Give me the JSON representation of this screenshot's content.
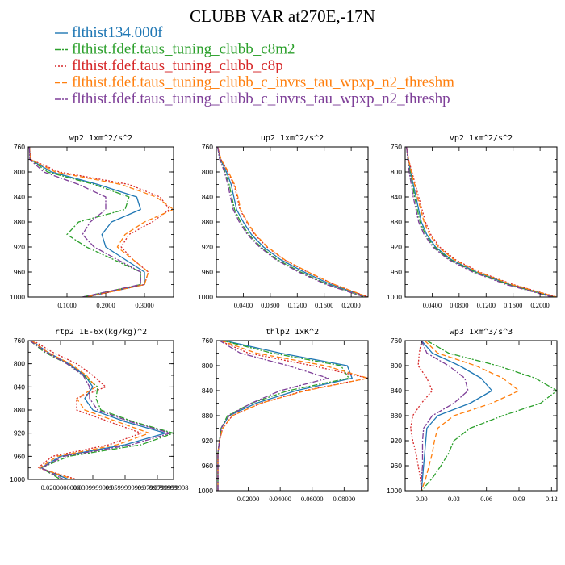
{
  "figure": {
    "title": "CLUBB VAR at270E,-17N"
  },
  "legend": [
    {
      "name": "flthist134.000f",
      "color": "#1f77b4",
      "dash": "solid"
    },
    {
      "name": "flthist.fdef.taus_tuning_clubb_c8m2",
      "color": "#2ca02c",
      "dash": "dashdot"
    },
    {
      "name": "flthist.fdef.taus_tuning_clubb_c8p",
      "color": "#d62728",
      "dash": "dot"
    },
    {
      "name": "flthist.fdef.taus_tuning_clubb_c_invrs_tau_wpxp_n2_threshm",
      "color": "#ff7f0e",
      "dash": "dash"
    },
    {
      "name": "flthist.fdef.taus_tuning_clubb_c_invrs_tau_wpxp_n2_threshp",
      "color": "#7e3f98",
      "dash": "dashdot"
    }
  ],
  "chart_data": [
    {
      "type": "line",
      "title": "wp2  1xm^2/s^2",
      "ylim": [
        760,
        1000
      ],
      "xlim": [
        0,
        0.375
      ],
      "yticks": [
        760,
        800,
        840,
        880,
        920,
        960,
        1000
      ],
      "xticks": [
        0.1,
        0.2,
        0.3
      ],
      "xtick_labels": [
        "0.1000",
        "0.2000",
        "0.3000"
      ],
      "y": [
        760,
        780,
        800,
        820,
        840,
        860,
        880,
        900,
        920,
        940,
        960,
        980,
        1000
      ],
      "series": [
        {
          "name": "flthist134.000f",
          "values": [
            0.003,
            0.005,
            0.06,
            0.18,
            0.28,
            0.29,
            0.215,
            0.19,
            0.2,
            0.25,
            0.3,
            0.3,
            0.15
          ]
        },
        {
          "name": "flthist.fdef.taus_tuning_clubb_c8m2",
          "values": [
            0.003,
            0.005,
            0.05,
            0.17,
            0.26,
            0.25,
            0.13,
            0.1,
            0.15,
            0.22,
            0.29,
            0.29,
            0.14
          ]
        },
        {
          "name": "flthist.fdef.taus_tuning_clubb_c8p",
          "values": [
            0.003,
            0.006,
            0.08,
            0.26,
            0.34,
            0.365,
            0.32,
            0.26,
            0.24,
            0.27,
            0.31,
            0.3,
            0.15
          ]
        },
        {
          "name": "flthist.fdef.taus_tuning_clubb_c_invrs_tau_wpxp_n2_threshm",
          "values": [
            0.003,
            0.006,
            0.07,
            0.24,
            0.33,
            0.375,
            0.3,
            0.25,
            0.23,
            0.27,
            0.31,
            0.3,
            0.15
          ]
        },
        {
          "name": "flthist.fdef.taus_tuning_clubb_c_invrs_tau_wpxp_n2_threshp",
          "values": [
            0.003,
            0.004,
            0.04,
            0.13,
            0.2,
            0.2,
            0.16,
            0.14,
            0.17,
            0.23,
            0.29,
            0.29,
            0.14
          ]
        }
      ]
    },
    {
      "type": "line",
      "title": "up2  1xm^2/s^2",
      "ylim": [
        760,
        1000
      ],
      "xlim": [
        0,
        0.225
      ],
      "yticks": [
        760,
        800,
        840,
        880,
        920,
        960,
        1000
      ],
      "xticks": [
        0.04,
        0.08,
        0.12,
        0.16,
        0.2
      ],
      "xtick_labels": [
        "0.0400",
        "0.0800",
        "0.1200",
        "0.1600",
        "0.2000"
      ],
      "y": [
        760,
        780,
        800,
        820,
        840,
        860,
        880,
        900,
        920,
        940,
        960,
        980,
        1000
      ],
      "series": [
        {
          "name": "flthist134.000f",
          "values": [
            0.002,
            0.006,
            0.015,
            0.022,
            0.026,
            0.03,
            0.04,
            0.052,
            0.07,
            0.095,
            0.13,
            0.17,
            0.225
          ]
        },
        {
          "name": "flthist.fdef.taus_tuning_clubb_c8m2",
          "values": [
            0.002,
            0.005,
            0.013,
            0.019,
            0.023,
            0.027,
            0.036,
            0.048,
            0.066,
            0.09,
            0.125,
            0.165,
            0.22
          ]
        },
        {
          "name": "flthist.fdef.taus_tuning_clubb_c8p",
          "values": [
            0.002,
            0.007,
            0.017,
            0.026,
            0.031,
            0.035,
            0.045,
            0.057,
            0.075,
            0.1,
            0.135,
            0.175,
            0.225
          ]
        },
        {
          "name": "flthist.fdef.taus_tuning_clubb_c_invrs_tau_wpxp_n2_threshm",
          "values": [
            0.002,
            0.007,
            0.018,
            0.027,
            0.032,
            0.036,
            0.046,
            0.058,
            0.076,
            0.101,
            0.136,
            0.175,
            0.225
          ]
        },
        {
          "name": "flthist.fdef.taus_tuning_clubb_c_invrs_tau_wpxp_n2_threshp",
          "values": [
            0.002,
            0.005,
            0.012,
            0.017,
            0.021,
            0.025,
            0.034,
            0.046,
            0.064,
            0.088,
            0.122,
            0.163,
            0.22
          ]
        }
      ]
    },
    {
      "type": "line",
      "title": "vp2  1xm^2/s^2",
      "ylim": [
        760,
        1000
      ],
      "xlim": [
        0,
        0.225
      ],
      "yticks": [
        760,
        800,
        840,
        880,
        920,
        960,
        1000
      ],
      "xticks": [
        0.04,
        0.08,
        0.12,
        0.16,
        0.2
      ],
      "xtick_labels": [
        "0.0400",
        "0.0800",
        "0.1200",
        "0.1600",
        "0.2000"
      ],
      "y": [
        760,
        780,
        800,
        820,
        840,
        860,
        880,
        900,
        920,
        940,
        960,
        980,
        1000
      ],
      "series": [
        {
          "name": "flthist134.000f",
          "values": [
            0.002,
            0.005,
            0.008,
            0.012,
            0.016,
            0.02,
            0.024,
            0.032,
            0.045,
            0.068,
            0.105,
            0.155,
            0.222
          ]
        },
        {
          "name": "flthist.fdef.taus_tuning_clubb_c8m2",
          "values": [
            0.002,
            0.004,
            0.007,
            0.011,
            0.014,
            0.018,
            0.022,
            0.03,
            0.043,
            0.066,
            0.103,
            0.153,
            0.22
          ]
        },
        {
          "name": "flthist.fdef.taus_tuning_clubb_c8p",
          "values": [
            0.002,
            0.005,
            0.01,
            0.015,
            0.02,
            0.025,
            0.03,
            0.038,
            0.051,
            0.074,
            0.11,
            0.16,
            0.225
          ]
        },
        {
          "name": "flthist.fdef.taus_tuning_clubb_c_invrs_tau_wpxp_n2_threshm",
          "values": [
            0.002,
            0.005,
            0.009,
            0.014,
            0.018,
            0.023,
            0.028,
            0.036,
            0.049,
            0.072,
            0.108,
            0.158,
            0.224
          ]
        },
        {
          "name": "flthist.fdef.taus_tuning_clubb_c_invrs_tau_wpxp_n2_threshp",
          "values": [
            0.002,
            0.004,
            0.006,
            0.009,
            0.012,
            0.016,
            0.02,
            0.028,
            0.041,
            0.064,
            0.1,
            0.15,
            0.218
          ]
        }
      ]
    },
    {
      "type": "line",
      "title": "rtp2  1E-6x(kg/kg)^2",
      "ylim": [
        760,
        1000
      ],
      "xlim": [
        0,
        0.09
      ],
      "yticks": [
        760,
        800,
        840,
        880,
        920,
        960,
        1000
      ],
      "xticks": [
        0.02,
        0.04,
        0.06,
        0.08
      ],
      "xtick_labels": [
        "0.0200000000",
        "0.0399999999",
        "0.0599999999",
        "0.0799999999"
      ],
      "xtick_overlap": "0.0799999998",
      "y": [
        760,
        780,
        800,
        820,
        840,
        860,
        880,
        900,
        920,
        940,
        960,
        980,
        1000
      ],
      "series": [
        {
          "name": "flthist134.000f",
          "values": [
            0.002,
            0.012,
            0.025,
            0.035,
            0.04,
            0.035,
            0.04,
            0.06,
            0.085,
            0.06,
            0.02,
            0.008,
            0.025
          ]
        },
        {
          "name": "flthist.fdef.taus_tuning_clubb_c8m2",
          "values": [
            0.001,
            0.01,
            0.024,
            0.034,
            0.043,
            0.042,
            0.045,
            0.065,
            0.09,
            0.07,
            0.025,
            0.008,
            0.02
          ]
        },
        {
          "name": "flthist.fdef.taus_tuning_clubb_c8p",
          "values": [
            0.003,
            0.015,
            0.03,
            0.04,
            0.048,
            0.03,
            0.03,
            0.05,
            0.07,
            0.05,
            0.015,
            0.006,
            0.03
          ]
        },
        {
          "name": "flthist.fdef.taus_tuning_clubb_c_invrs_tau_wpxp_n2_threshm",
          "values": [
            0.002,
            0.012,
            0.026,
            0.036,
            0.042,
            0.03,
            0.035,
            0.055,
            0.075,
            0.055,
            0.018,
            0.007,
            0.028
          ]
        },
        {
          "name": "flthist.fdef.taus_tuning_clubb_c_invrs_tau_wpxp_n2_threshp",
          "values": [
            0.001,
            0.011,
            0.024,
            0.034,
            0.038,
            0.038,
            0.043,
            0.063,
            0.088,
            0.064,
            0.022,
            0.008,
            0.022
          ]
        }
      ]
    },
    {
      "type": "line",
      "title": "thlp2  1xK^2",
      "ylim": [
        760,
        1000
      ],
      "xlim": [
        0,
        0.095
      ],
      "yticks": [
        760,
        800,
        840,
        880,
        920,
        960,
        1000
      ],
      "xticks": [
        0.02,
        0.04,
        0.06,
        0.08
      ],
      "xtick_labels": [
        "0.02000",
        "0.04000",
        "0.06000",
        "0.08000"
      ],
      "y": [
        760,
        780,
        800,
        820,
        840,
        860,
        880,
        900,
        920,
        940,
        960,
        980,
        1000
      ],
      "series": [
        {
          "name": "flthist134.000f",
          "values": [
            0.005,
            0.04,
            0.082,
            0.085,
            0.05,
            0.025,
            0.008,
            0.003,
            0.002,
            0.001,
            0.001,
            0.001,
            0.001
          ]
        },
        {
          "name": "flthist.fdef.taus_tuning_clubb_c8m2",
          "values": [
            0.004,
            0.035,
            0.078,
            0.083,
            0.045,
            0.022,
            0.007,
            0.003,
            0.002,
            0.001,
            0.001,
            0.001,
            0.001
          ]
        },
        {
          "name": "flthist.fdef.taus_tuning_clubb_c8p",
          "values": [
            0.002,
            0.02,
            0.06,
            0.095,
            0.055,
            0.028,
            0.01,
            0.004,
            0.002,
            0.001,
            0.001,
            0.001,
            0.001
          ]
        },
        {
          "name": "flthist.fdef.taus_tuning_clubb_c_invrs_tau_wpxp_n2_threshm",
          "values": [
            0.003,
            0.025,
            0.068,
            0.095,
            0.056,
            0.028,
            0.01,
            0.004,
            0.002,
            0.001,
            0.001,
            0.001,
            0.001
          ]
        },
        {
          "name": "flthist.fdef.taus_tuning_clubb_c_invrs_tau_wpxp_n2_threshp",
          "values": [
            0.002,
            0.015,
            0.045,
            0.07,
            0.04,
            0.022,
            0.008,
            0.003,
            0.002,
            0.001,
            0.001,
            0.001,
            0.001
          ]
        }
      ]
    },
    {
      "type": "line",
      "title": "wp3  1xm^3/s^3",
      "ylim": [
        760,
        1000
      ],
      "xlim": [
        -0.015,
        0.125
      ],
      "yticks": [
        760,
        800,
        840,
        880,
        920,
        960,
        1000
      ],
      "xticks": [
        0.0,
        0.03,
        0.06,
        0.09,
        0.12
      ],
      "xtick_labels": [
        "0.00",
        "0.03",
        "0.06",
        "0.09",
        "0.12"
      ],
      "y": [
        760,
        780,
        800,
        820,
        840,
        860,
        880,
        900,
        920,
        940,
        960,
        980,
        1000
      ],
      "series": [
        {
          "name": "flthist134.000f",
          "values": [
            0.0,
            0.01,
            0.035,
            0.055,
            0.065,
            0.045,
            0.015,
            0.005,
            0.004,
            0.003,
            0.002,
            0.001,
            0.0
          ]
        },
        {
          "name": "flthist.fdef.taus_tuning_clubb_c8m2",
          "values": [
            0.005,
            0.025,
            0.07,
            0.105,
            0.125,
            0.11,
            0.075,
            0.045,
            0.03,
            0.025,
            0.018,
            0.01,
            0.0
          ]
        },
        {
          "name": "flthist.fdef.taus_tuning_clubb_c8p",
          "values": [
            0.0,
            -0.002,
            -0.003,
            0.005,
            0.01,
            0.0,
            -0.008,
            -0.01,
            -0.008,
            -0.005,
            -0.003,
            -0.001,
            0.0
          ]
        },
        {
          "name": "flthist.fdef.taus_tuning_clubb_c_invrs_tau_wpxp_n2_threshm",
          "values": [
            0.003,
            0.015,
            0.05,
            0.075,
            0.09,
            0.065,
            0.03,
            0.015,
            0.012,
            0.01,
            0.007,
            0.004,
            0.0
          ]
        },
        {
          "name": "flthist.fdef.taus_tuning_clubb_c_invrs_tau_wpxp_n2_threshp",
          "values": [
            0.0,
            0.005,
            0.025,
            0.04,
            0.043,
            0.03,
            0.01,
            0.002,
            0.001,
            0.001,
            0.001,
            0.0,
            0.0
          ]
        }
      ]
    }
  ]
}
